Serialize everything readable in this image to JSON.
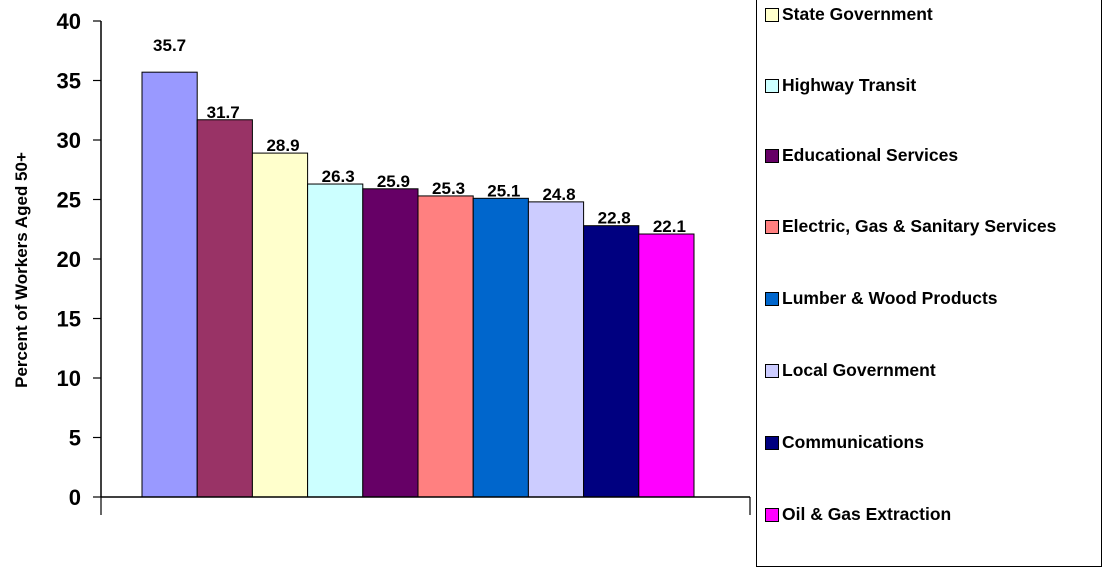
{
  "chart_data": {
    "type": "bar",
    "ylabel": "Percent of Workers Aged 50+",
    "xlabel": "",
    "ylim": [
      0,
      40
    ],
    "yticks": [
      0,
      5,
      10,
      15,
      20,
      25,
      30,
      35,
      40
    ],
    "grid": false,
    "legend_position": "right",
    "series": [
      {
        "name": "State Government",
        "value": 35.7,
        "color": "#9999FF"
      },
      {
        "name": "Highway Transit",
        "value": 31.7,
        "color": "#993366"
      },
      {
        "name": "Educational Services",
        "value": 28.9,
        "color": "#FFFFCC"
      },
      {
        "name": "Electric, Gas & Sanitary Services",
        "value": 26.3,
        "color": "#CCFFFF"
      },
      {
        "name": "Lumber & Wood Products",
        "value": 25.9,
        "color": "#660066"
      },
      {
        "name": "Local Government",
        "value": 25.3,
        "color": "#FF8080"
      },
      {
        "name": "Communications",
        "value": 25.1,
        "color": "#0066CC"
      },
      {
        "name": "Oil & Gas Extraction",
        "value": 24.8,
        "color": "#CCCCFF"
      },
      {
        "name": "",
        "value": 22.8,
        "color": "#000080"
      },
      {
        "name": "",
        "value": 22.1,
        "color": "#FF00FF"
      }
    ],
    "legend_entries": [
      {
        "label": "State Government",
        "color": "#FFFFCC"
      },
      {
        "label": "Highway Transit",
        "color": "#CCFFFF"
      },
      {
        "label": "Educational Services",
        "color": "#660066"
      },
      {
        "label": "Electric, Gas & Sanitary Services",
        "color": "#FF8080"
      },
      {
        "label": "Lumber & Wood Products",
        "color": "#0066CC"
      },
      {
        "label": "Local Government",
        "color": "#CCCCFF"
      },
      {
        "label": "Communications",
        "color": "#000080"
      },
      {
        "label": "Oil & Gas Extraction",
        "color": "#FF00FF"
      }
    ]
  }
}
